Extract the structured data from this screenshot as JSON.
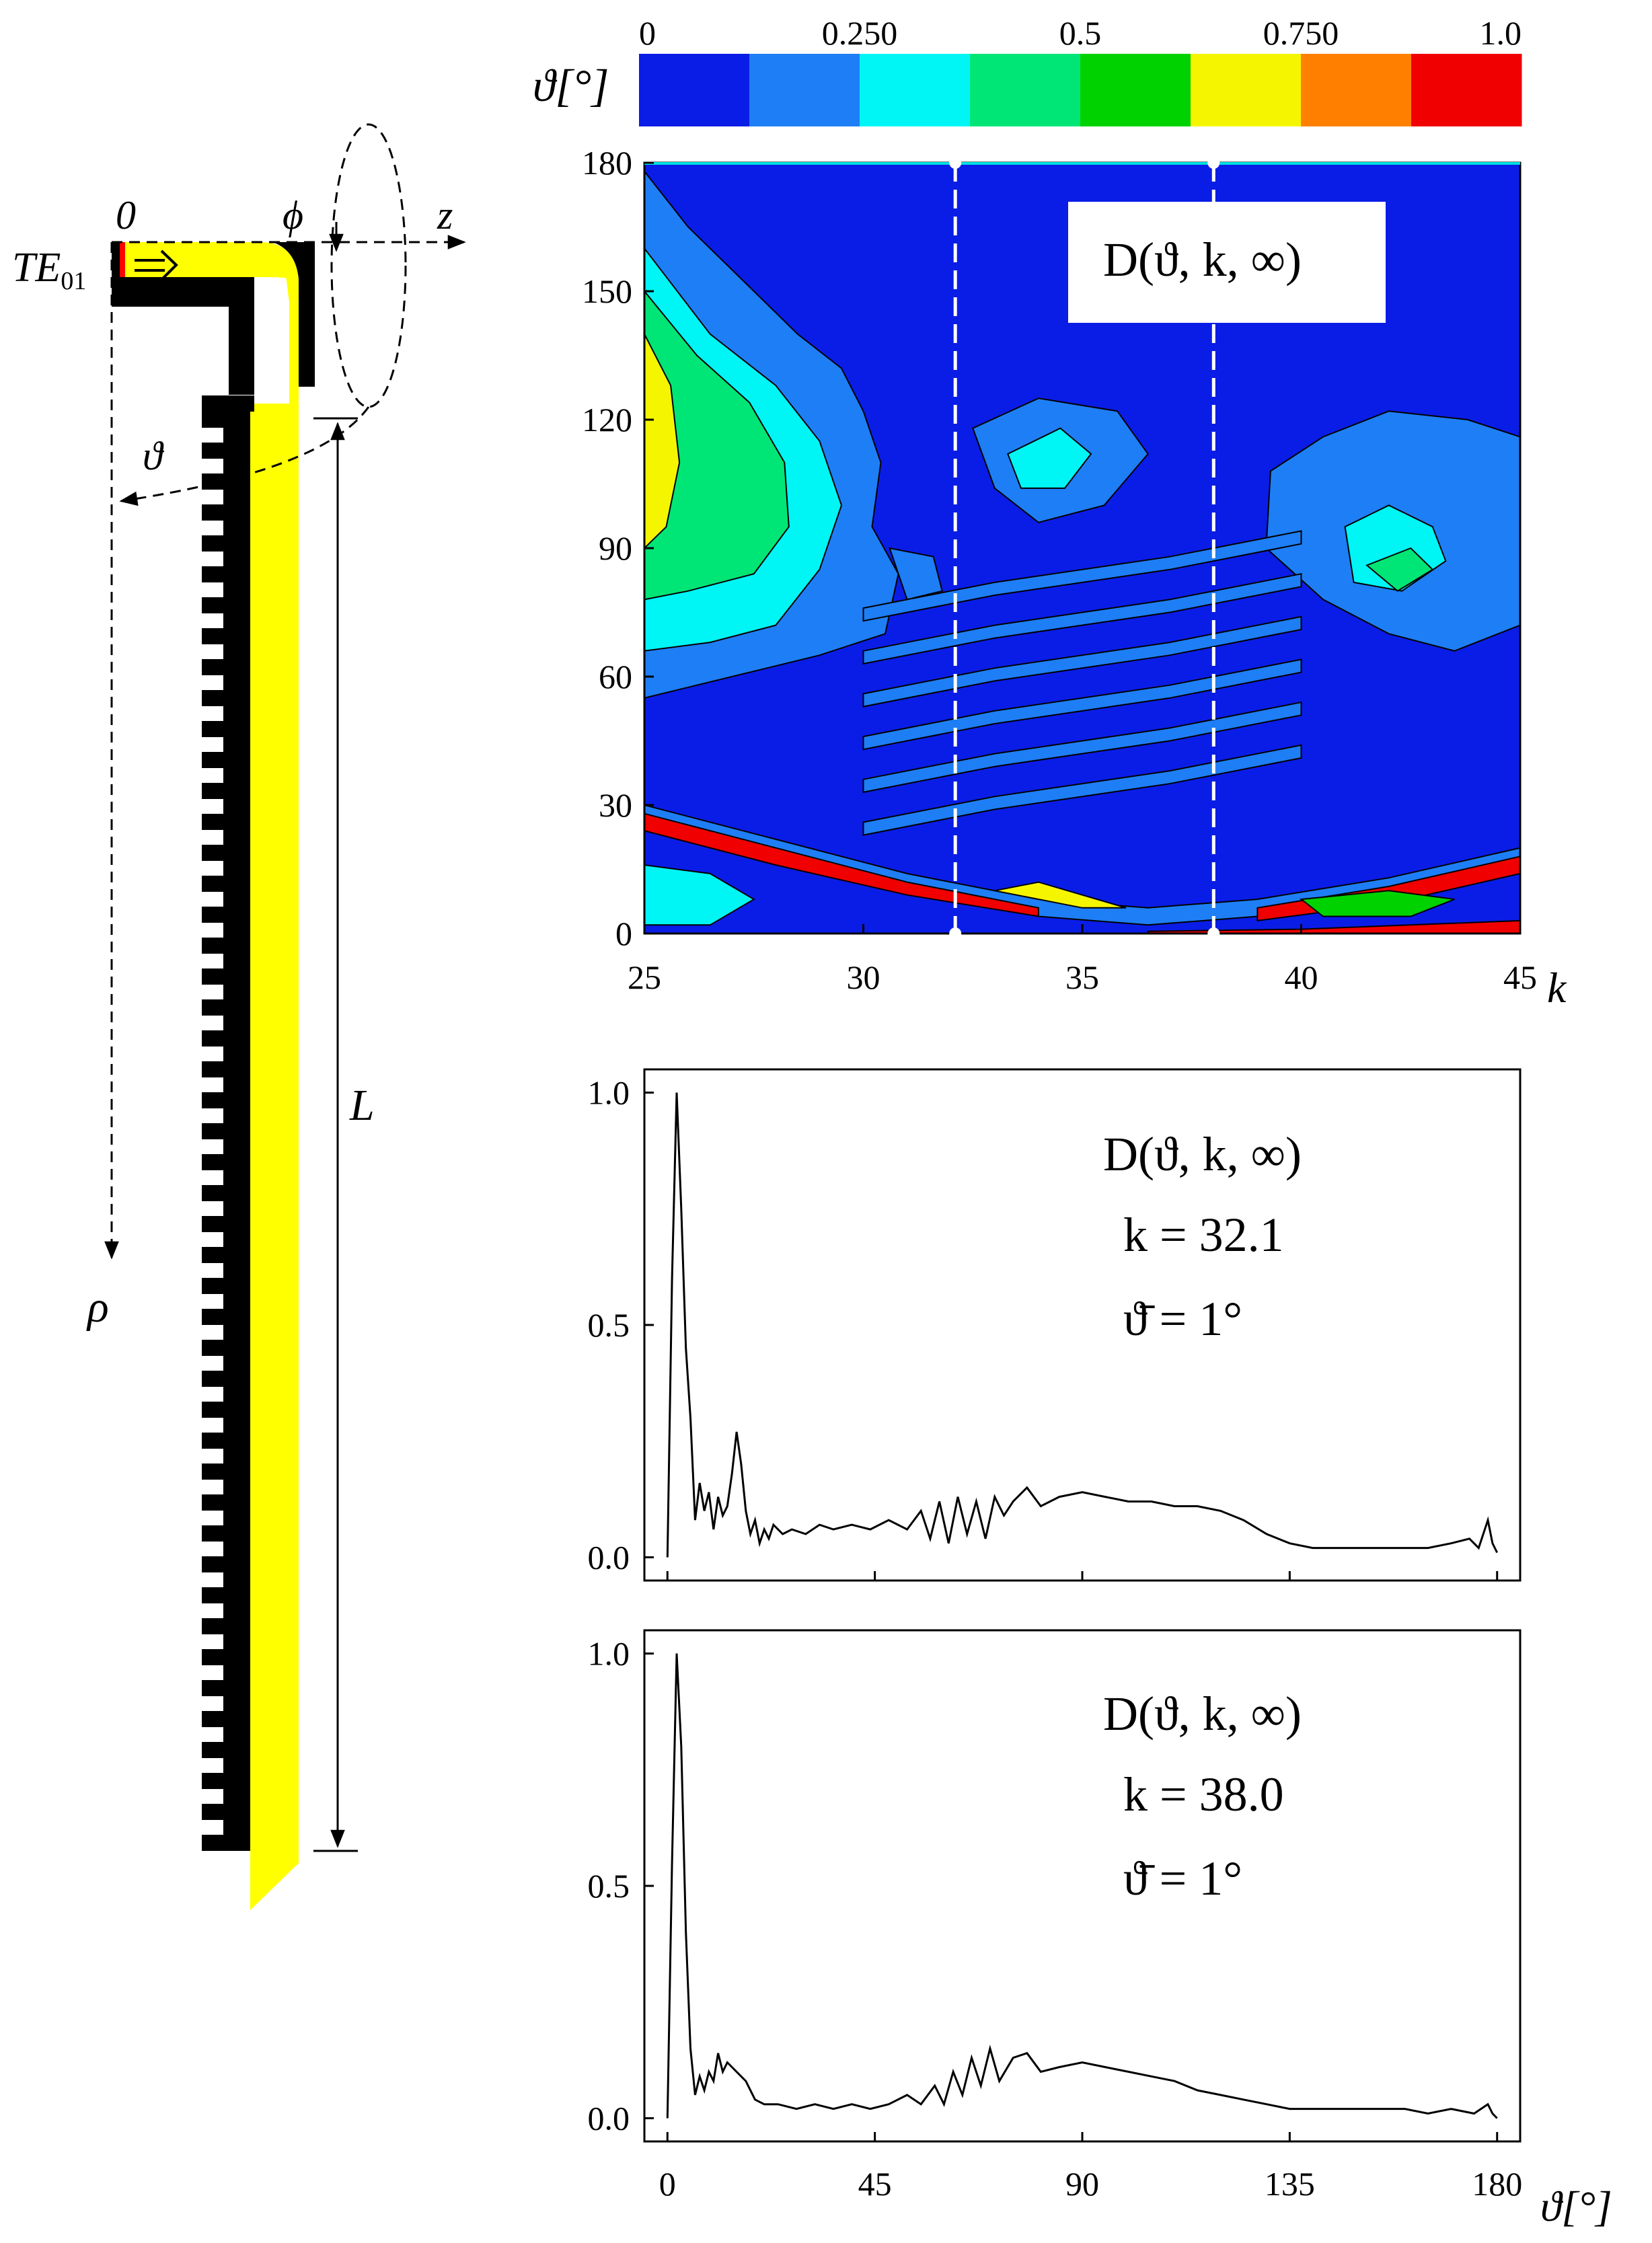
{
  "chart_data": [
    {
      "type": "schematic",
      "labels": {
        "origin": "0",
        "phi": "ϕ",
        "z": "z",
        "mode": "TE",
        "mode_sub": "01",
        "theta": "ϑ",
        "rho": "ρ",
        "length": "L"
      }
    },
    {
      "type": "heatmap",
      "title": "D(ϑ, k, ∞)",
      "xlabel": "k",
      "ylabel": "",
      "x_ticks": [
        25,
        30,
        35,
        40,
        45
      ],
      "y_ticks": [
        0,
        30,
        60,
        90,
        120,
        150,
        180
      ],
      "xlim": [
        25,
        45
      ],
      "ylim": [
        0,
        180
      ],
      "colorbar": {
        "label": "ϑ[°]",
        "tick_labels": [
          "0",
          "0.250",
          "0.5",
          "0.750",
          "1.0"
        ],
        "tick_values": [
          0,
          0.25,
          0.5,
          0.75,
          1.0
        ],
        "colors": [
          "#0a1de6",
          "#1e7ef5",
          "#00f5f5",
          "#00e676",
          "#00d200",
          "#f5f500",
          "#ff8000",
          "#f00000"
        ]
      },
      "marked_k": [
        32.1,
        38.0
      ]
    },
    {
      "type": "line",
      "title": "D(ϑ, k, ∞)",
      "annotation_k": "k = 32.1",
      "annotation_theta": "ϑ̄ = 1°",
      "xlabel": "",
      "ylabel": "",
      "xlim": [
        -5,
        185
      ],
      "ylim": [
        -0.05,
        1.05
      ],
      "y_ticks": [
        0.0,
        0.5,
        1.0
      ],
      "y_tick_labels": [
        "0.0",
        "0.5",
        "1.0"
      ],
      "series": [
        {
          "x": [
            0,
            1,
            2,
            3,
            4,
            5,
            6,
            7,
            8,
            9,
            10,
            11,
            12,
            13,
            14,
            15,
            16,
            17,
            18,
            19,
            20,
            21,
            22,
            23,
            25,
            27,
            30,
            33,
            36,
            40,
            44,
            48,
            52,
            55,
            57,
            59,
            61,
            63,
            65,
            67,
            69,
            71,
            73,
            75,
            78,
            81,
            85,
            90,
            95,
            100,
            105,
            110,
            115,
            120,
            125,
            130,
            135,
            140,
            145,
            150,
            155,
            160,
            165,
            170,
            174,
            176,
            178,
            179,
            180
          ],
          "y": [
            0.0,
            0.6,
            1.0,
            0.75,
            0.45,
            0.3,
            0.08,
            0.16,
            0.1,
            0.14,
            0.06,
            0.13,
            0.09,
            0.11,
            0.18,
            0.27,
            0.2,
            0.1,
            0.05,
            0.08,
            0.03,
            0.06,
            0.04,
            0.07,
            0.05,
            0.06,
            0.05,
            0.07,
            0.06,
            0.07,
            0.06,
            0.08,
            0.06,
            0.1,
            0.04,
            0.12,
            0.03,
            0.13,
            0.05,
            0.12,
            0.04,
            0.13,
            0.09,
            0.12,
            0.15,
            0.11,
            0.13,
            0.14,
            0.13,
            0.12,
            0.12,
            0.11,
            0.11,
            0.1,
            0.08,
            0.05,
            0.03,
            0.02,
            0.02,
            0.02,
            0.02,
            0.02,
            0.02,
            0.03,
            0.04,
            0.02,
            0.08,
            0.03,
            0.01
          ]
        }
      ]
    },
    {
      "type": "line",
      "title": "D(ϑ, k, ∞)",
      "annotation_k": "k = 38.0",
      "annotation_theta": "ϑ̄ = 1°",
      "xlabel": "ϑ[°]",
      "ylabel": "",
      "xlim": [
        -5,
        185
      ],
      "ylim": [
        -0.05,
        1.05
      ],
      "x_ticks": [
        0,
        45,
        90,
        135,
        180
      ],
      "y_ticks": [
        0.0,
        0.5,
        1.0
      ],
      "y_tick_labels": [
        "0.0",
        "0.5",
        "1.0"
      ],
      "series": [
        {
          "x": [
            0,
            1,
            2,
            3,
            4,
            5,
            6,
            7,
            8,
            9,
            10,
            11,
            12,
            13,
            15,
            17,
            19,
            21,
            24,
            28,
            32,
            36,
            40,
            44,
            48,
            52,
            55,
            58,
            60,
            62,
            64,
            66,
            68,
            70,
            72,
            75,
            78,
            81,
            85,
            90,
            95,
            100,
            105,
            110,
            115,
            120,
            125,
            130,
            135,
            140,
            145,
            150,
            155,
            160,
            165,
            170,
            175,
            178,
            179,
            180
          ],
          "y": [
            0.0,
            0.55,
            1.0,
            0.8,
            0.4,
            0.15,
            0.05,
            0.09,
            0.06,
            0.1,
            0.08,
            0.14,
            0.1,
            0.12,
            0.1,
            0.08,
            0.04,
            0.03,
            0.03,
            0.02,
            0.03,
            0.02,
            0.03,
            0.02,
            0.03,
            0.05,
            0.03,
            0.07,
            0.03,
            0.1,
            0.05,
            0.13,
            0.07,
            0.15,
            0.08,
            0.13,
            0.14,
            0.1,
            0.11,
            0.12,
            0.11,
            0.1,
            0.09,
            0.08,
            0.06,
            0.05,
            0.04,
            0.03,
            0.02,
            0.02,
            0.02,
            0.02,
            0.02,
            0.02,
            0.01,
            0.02,
            0.01,
            0.03,
            0.01,
            0.0
          ]
        }
      ]
    }
  ]
}
